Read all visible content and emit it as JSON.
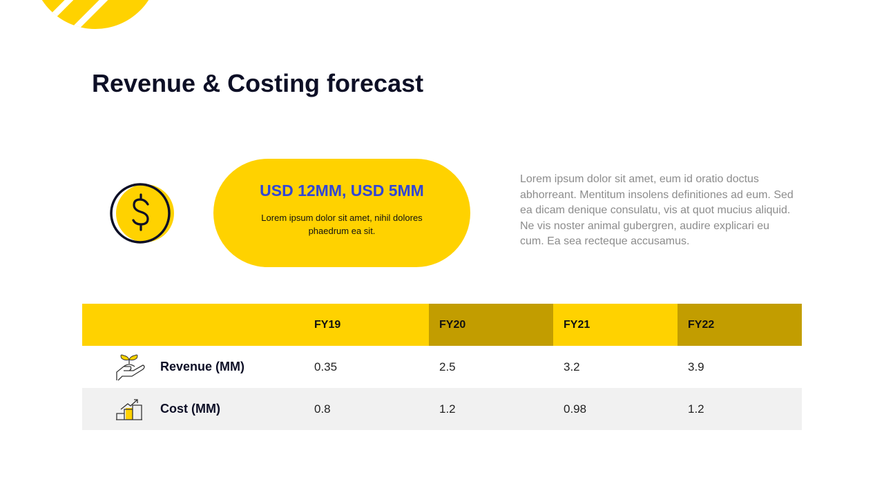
{
  "title": "Revenue & Costing forecast",
  "highlight": {
    "heading": "USD 12MM, USD 5MM",
    "text": "Lorem ipsum dolor sit amet, nihil dolores phaedrum ea sit."
  },
  "paragraph": "Lorem ipsum dolor sit amet, eum id oratio doctus abhorreant. Mentitum insolens definitiones ad eum. Sed ea dicam denique consulatu, vis at quot mucius aliquid. Ne vis noster animal gubergren, audire explicari eu cum. Ea sea recteque accusamus.",
  "colors": {
    "accent": "#ffd200",
    "accent_dark": "#c29d00",
    "title": "#0d0f26",
    "highlight_text": "#3046d6"
  },
  "table": {
    "headers": [
      "",
      "FY19",
      "FY20",
      "FY21",
      "FY22"
    ],
    "rows": [
      {
        "icon": "plant-hand-icon",
        "label": "Revenue (MM)",
        "values": [
          "0.35",
          "2.5",
          "3.2",
          "3.9"
        ]
      },
      {
        "icon": "bar-chart-growth-icon",
        "label": "Cost (MM)",
        "values": [
          "0.8",
          "1.2",
          "0.98",
          "1.2"
        ]
      }
    ]
  }
}
